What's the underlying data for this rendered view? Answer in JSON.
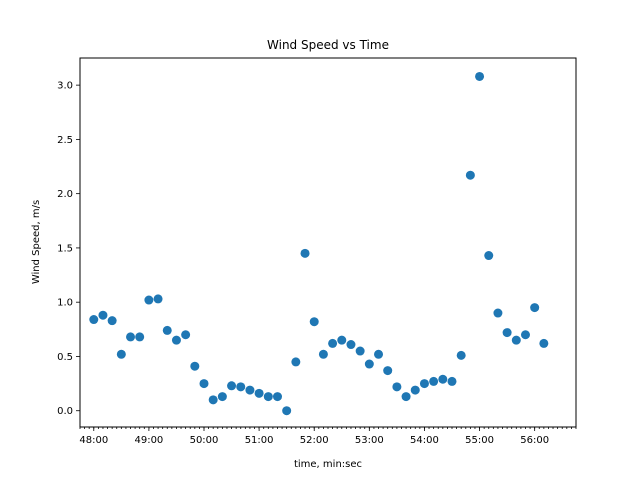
{
  "chart_data": {
    "type": "scatter",
    "title": "Wind Speed vs Time",
    "xlabel": "time, min:sec",
    "ylabel": "Wind Speed, m/s",
    "xlim": [
      "47:45",
      "56:45"
    ],
    "ylim": [
      -0.15,
      3.25
    ],
    "x_ticks": [
      "48:00",
      "49:00",
      "50:00",
      "51:00",
      "52:00",
      "53:00",
      "54:00",
      "55:00",
      "56:00"
    ],
    "y_ticks": [
      "0.0",
      "0.5",
      "1.0",
      "1.5",
      "2.0",
      "2.5",
      "3.0"
    ],
    "grid": false,
    "color": "#1f77b4",
    "series": [
      {
        "x": [
          "48:00",
          "48:10",
          "48:20",
          "48:30",
          "48:40",
          "48:50",
          "49:00",
          "49:10",
          "49:20",
          "49:30",
          "49:40",
          "49:50",
          "50:00",
          "50:10",
          "50:20",
          "50:30",
          "50:40",
          "50:50",
          "51:00",
          "51:10",
          "51:20",
          "51:30",
          "51:40",
          "51:50",
          "52:00",
          "52:10",
          "52:20",
          "52:30",
          "52:40",
          "52:50",
          "53:00",
          "53:10",
          "53:20",
          "53:30",
          "53:40",
          "53:50",
          "54:00",
          "54:10",
          "54:20",
          "54:30",
          "54:40",
          "54:50",
          "55:00",
          "55:10",
          "55:20",
          "55:30",
          "55:40",
          "55:50",
          "56:00",
          "56:10"
        ],
        "y": [
          0.84,
          0.88,
          0.83,
          0.52,
          0.68,
          0.68,
          1.02,
          1.03,
          0.74,
          0.65,
          0.7,
          0.41,
          0.25,
          0.1,
          0.13,
          0.23,
          0.22,
          0.19,
          0.16,
          0.13,
          0.13,
          0.0,
          0.45,
          1.45,
          0.82,
          0.52,
          0.62,
          0.65,
          0.61,
          0.55,
          0.43,
          0.52,
          0.37,
          0.22,
          0.13,
          0.19,
          0.25,
          0.27,
          0.29,
          0.27,
          0.51,
          2.17,
          3.08,
          1.43,
          0.9,
          0.72,
          0.65,
          0.7,
          0.95,
          0.62
        ]
      }
    ]
  }
}
